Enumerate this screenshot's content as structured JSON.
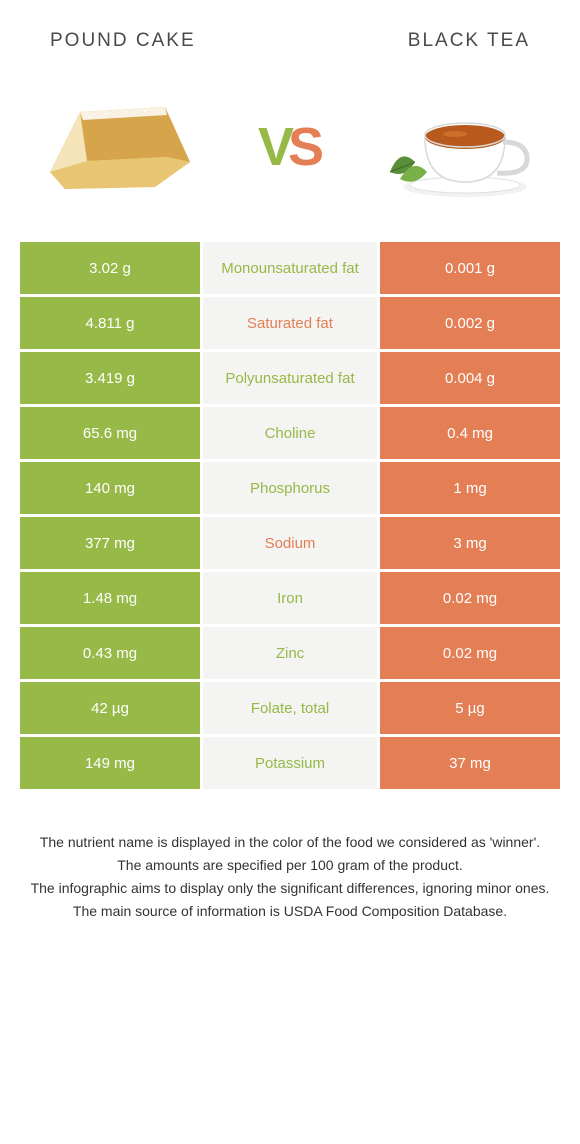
{
  "colors": {
    "left": "#97b947",
    "right": "#e37e55",
    "mid_bg": "#f4f4f2"
  },
  "header": {
    "left_title": "POUND CAKE",
    "right_title": "BLACK TEA"
  },
  "vs": {
    "v": "V",
    "s": "S"
  },
  "rows": [
    {
      "left": "3.02 g",
      "mid": "Monounsaturated fat",
      "right": "0.001 g",
      "winner": "left"
    },
    {
      "left": "4.811 g",
      "mid": "Saturated fat",
      "right": "0.002 g",
      "winner": "right"
    },
    {
      "left": "3.419 g",
      "mid": "Polyunsaturated fat",
      "right": "0.004 g",
      "winner": "left"
    },
    {
      "left": "65.6 mg",
      "mid": "Choline",
      "right": "0.4 mg",
      "winner": "left"
    },
    {
      "left": "140 mg",
      "mid": "Phosphorus",
      "right": "1 mg",
      "winner": "left"
    },
    {
      "left": "377 mg",
      "mid": "Sodium",
      "right": "3 mg",
      "winner": "right"
    },
    {
      "left": "1.48 mg",
      "mid": "Iron",
      "right": "0.02 mg",
      "winner": "left"
    },
    {
      "left": "0.43 mg",
      "mid": "Zinc",
      "right": "0.02 mg",
      "winner": "left"
    },
    {
      "left": "42 µg",
      "mid": "Folate, total",
      "right": "5 µg",
      "winner": "left"
    },
    {
      "left": "149 mg",
      "mid": "Potassium",
      "right": "37 mg",
      "winner": "left"
    }
  ],
  "footer": {
    "line1": "The nutrient name is displayed in the color of the food we considered as 'winner'.",
    "line2": "The amounts are specified per 100 gram of the product.",
    "line3": "The infographic aims to display only the significant differences, ignoring minor ones.",
    "line4": "The main source of information is USDA Food Composition Database."
  }
}
